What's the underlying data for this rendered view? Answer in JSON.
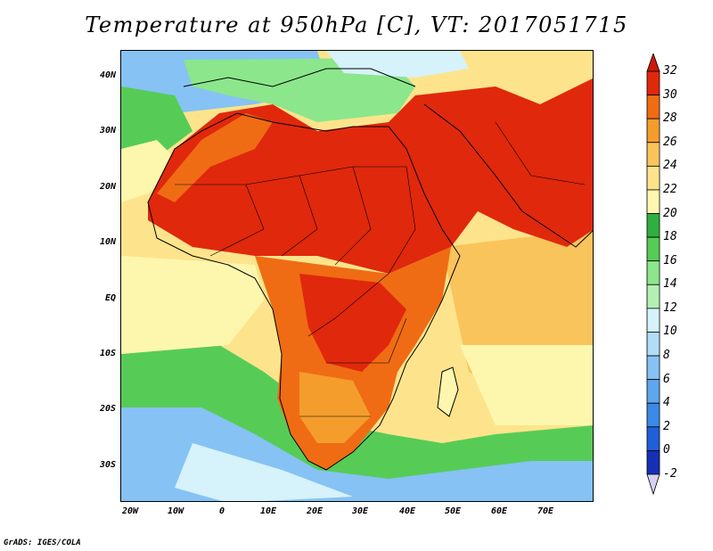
{
  "title": "Temperature at 950hPa [C], VT: 2017051715",
  "credit": "GrADS: IGES/COLA",
  "lat_labels": [
    "40N",
    "30N",
    "20N",
    "10N",
    "EQ",
    "10S",
    "20S",
    "30S"
  ],
  "lon_labels": [
    "20W",
    "10W",
    "0",
    "10E",
    "20E",
    "30E",
    "40E",
    "50E",
    "60E",
    "70E"
  ],
  "colorbar": {
    "levels": [
      "-2",
      "0",
      "2",
      "4",
      "6",
      "8",
      "10",
      "12",
      "14",
      "16",
      "18",
      "20",
      "22",
      "24",
      "26",
      "28",
      "30",
      "32"
    ],
    "colors": [
      "#0a0a6e",
      "#1530b4",
      "#1f5fd8",
      "#3a8ae6",
      "#5ea6ee",
      "#86c2f4",
      "#b2dcf8",
      "#d6f2fa",
      "#b4f0b4",
      "#8ce68c",
      "#56cc56",
      "#2faf3f",
      "#fdf7ae",
      "#fde48c",
      "#f9c45c",
      "#f59d2c",
      "#ef6c14",
      "#e0280c",
      "#cc1a0a"
    ]
  },
  "colors": {
    "ocean_south_cold": "#86c2f4",
    "ocean_south_cool": "#d6f2fa",
    "ocean_green": "#56cc56",
    "ocean_pale": "#fdf7ae",
    "ocean_warm": "#fde48c",
    "land_hot": "#e0280c",
    "land_warm": "#ef6c14",
    "med_cool": "#8ce68c"
  }
}
